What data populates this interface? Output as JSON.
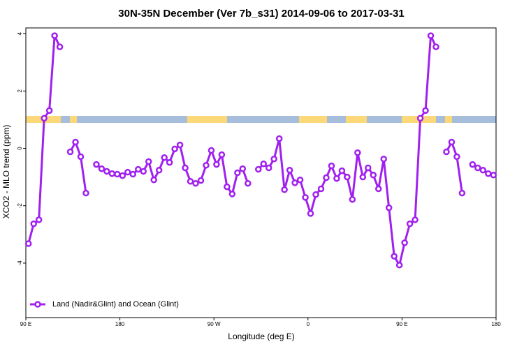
{
  "chart_data": {
    "type": "line",
    "title": "30N-35N December (Ver 7b_s31)   2014-09-06 to 2017-03-31",
    "x_label": "Longitude (deg E)",
    "y_label": "XCO2 - MLO trend (ppm)",
    "xlim": [
      90,
      540
    ],
    "ylim": [
      -5.9,
      4.2
    ],
    "xticks": [
      {
        "value": 90,
        "label": "90 E"
      },
      180,
      {
        "value": 270,
        "label": "90 W"
      },
      {
        "value": 360,
        "label": "0"
      },
      {
        "value": 450,
        "label": "90 E"
      },
      {
        "value": 540,
        "label": "180"
      }
    ],
    "yticks": [
      -4,
      -2,
      0,
      2,
      4
    ],
    "legend": "bottom-left",
    "series": [
      {
        "name": "Land (Nadir&Glint) and Ocean (Glint)",
        "color": "#a020f0",
        "x": [
          92.5,
          97.5,
          102.5,
          107.5,
          112.5,
          117.5,
          122.5,
          127.5,
          132.5,
          137.5,
          142.5,
          147.5,
          152.5,
          157.5,
          162.5,
          167.5,
          172.5,
          177.5,
          182.5,
          187.5,
          192.5,
          197.5,
          202.5,
          207.5,
          212.5,
          217.5,
          222.5,
          227.5,
          232.5,
          237.5,
          242.5,
          247.5,
          252.5,
          257.5,
          262.5,
          267.5,
          272.5,
          277.5,
          282.5,
          287.5,
          292.5,
          297.5,
          302.5,
          307.5,
          312.5,
          317.5,
          322.5,
          327.5,
          332.5,
          337.5,
          342.5,
          347.5,
          352.5,
          357.5,
          362.5,
          367.5,
          372.5,
          377.5,
          382.5,
          387.5,
          392.5,
          397.5,
          402.5,
          407.5,
          412.5,
          417.5,
          422.5,
          427.5,
          432.5,
          437.5,
          442.5,
          447.5,
          452.5,
          457.5,
          462.5,
          467.5,
          472.5,
          477.5,
          482.5,
          487.5,
          492.5,
          497.5,
          502.5,
          507.5,
          512.5,
          517.5,
          522.5,
          527.5,
          532.5,
          537.5
        ],
        "values": [
          -3.32,
          -2.63,
          -2.49,
          1.05,
          1.32,
          3.93,
          3.54,
          null,
          -0.12,
          0.22,
          -0.29,
          -1.56,
          null,
          -0.56,
          -0.71,
          -0.8,
          -0.88,
          -0.9,
          -0.95,
          -0.83,
          -0.9,
          -0.73,
          -0.8,
          -0.46,
          -1.1,
          -0.76,
          -0.32,
          -0.49,
          -0.02,
          0.12,
          -0.68,
          -1.15,
          -1.22,
          -1.12,
          -0.59,
          -0.07,
          -0.56,
          -0.22,
          -1.34,
          -1.59,
          -0.85,
          -0.71,
          -1.22,
          null,
          -0.73,
          -0.54,
          -0.68,
          -0.37,
          0.34,
          -1.44,
          -0.76,
          -1.2,
          -1.1,
          -1.71,
          -2.27,
          -1.61,
          -1.41,
          -1.02,
          -0.61,
          -1.05,
          -0.78,
          -1.0,
          -1.78,
          -0.15,
          -1.0,
          -0.68,
          -0.93,
          -1.41,
          -0.37,
          -2.07,
          -3.76,
          -4.07,
          -3.29,
          -2.63,
          -2.49,
          1.05,
          1.32,
          3.93,
          3.54,
          null,
          -0.12,
          0.22,
          -0.29,
          -1.56,
          null,
          -0.56,
          -0.68,
          -0.76,
          -0.88,
          -0.93
        ]
      }
    ]
  }
}
